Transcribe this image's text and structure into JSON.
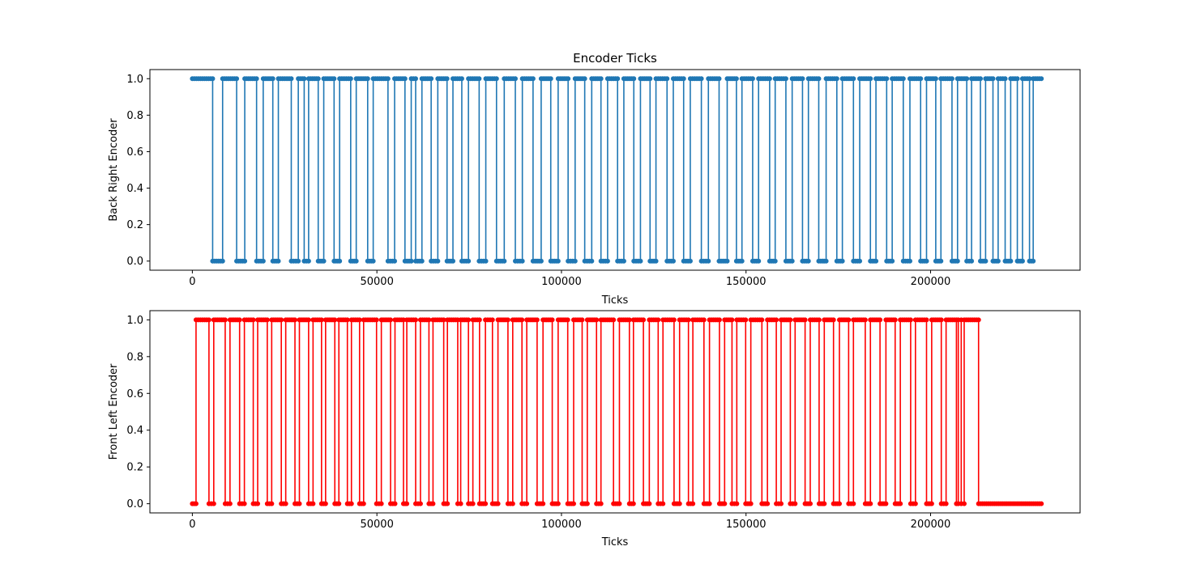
{
  "chart_data": [
    {
      "type": "line",
      "title": "Encoder Ticks",
      "xlabel": "Ticks",
      "ylabel": "Back Right Encoder",
      "xlim": [
        -11500,
        240500
      ],
      "ylim": [
        -0.05,
        1.05
      ],
      "xticks": [
        0,
        50000,
        100000,
        150000,
        200000
      ],
      "xtick_labels": [
        "0",
        "50000",
        "100000",
        "150000",
        "200000"
      ],
      "yticks": [
        0.0,
        0.2,
        0.4,
        0.6,
        0.8,
        1.0
      ],
      "ytick_labels": [
        "0.0",
        "0.2",
        "0.4",
        "0.6",
        "0.8",
        "1.0"
      ],
      "grid": false,
      "series": [
        {
          "color": "#1f77b4",
          "marker": "circle",
          "x_start": 0,
          "x_end": 230000,
          "initial_value": 1,
          "final_value": 1,
          "transitions": [
            5500,
            8200,
            12000,
            14200,
            17400,
            19200,
            21800,
            23300,
            26800,
            28700,
            30300,
            31500,
            34100,
            35600,
            38400,
            39900,
            42900,
            44400,
            47500,
            49000,
            53000,
            54800,
            57600,
            59300,
            60500,
            62200,
            64700,
            66500,
            69000,
            70600,
            73000,
            74800,
            77700,
            79500,
            82400,
            84500,
            87500,
            89400,
            92300,
            94500,
            97100,
            99100,
            101800,
            103700,
            106300,
            108200,
            110700,
            112500,
            115200,
            116900,
            119600,
            121400,
            124000,
            125600,
            128600,
            130300,
            133100,
            134900,
            137900,
            139800,
            142700,
            144900,
            147400,
            148900,
            151800,
            153400,
            156400,
            157900,
            160800,
            162500,
            165300,
            166900,
            169700,
            171700,
            174600,
            176100,
            179100,
            180800,
            183700,
            185200,
            188100,
            189600,
            192600,
            194400,
            197300,
            198900,
            201400,
            202800,
            205800,
            207300,
            209800,
            211100,
            213500,
            214900,
            216900,
            218300,
            220200,
            221700,
            223500,
            224900,
            226800,
            227800
          ]
        }
      ]
    },
    {
      "type": "line",
      "title": "",
      "xlabel": "Ticks",
      "ylabel": "Front Left Encoder",
      "xlim": [
        -11500,
        240500
      ],
      "ylim": [
        -0.05,
        1.05
      ],
      "xticks": [
        0,
        50000,
        100000,
        150000,
        200000
      ],
      "xtick_labels": [
        "0",
        "50000",
        "100000",
        "150000",
        "200000"
      ],
      "yticks": [
        0.0,
        0.2,
        0.4,
        0.6,
        0.8,
        1.0
      ],
      "ytick_labels": [
        "0.0",
        "0.2",
        "0.4",
        "0.6",
        "0.8",
        "1.0"
      ],
      "grid": false,
      "series": [
        {
          "color": "#ff0000",
          "marker": "circle",
          "x_start": 0,
          "x_end": 230000,
          "initial_value": 0,
          "final_value": 0,
          "transitions": [
            1000,
            4500,
            5800,
            8900,
            10200,
            12800,
            14100,
            16500,
            17700,
            20300,
            21500,
            24100,
            25300,
            27800,
            29000,
            31500,
            32700,
            35000,
            36100,
            38600,
            39700,
            42000,
            43100,
            45300,
            46400,
            49900,
            51200,
            53700,
            54900,
            57200,
            58100,
            60500,
            61800,
            64100,
            65200,
            68100,
            69100,
            71900,
            72700,
            74800,
            76000,
            77800,
            79400,
            81300,
            82800,
            85500,
            86800,
            89300,
            90600,
            93400,
            95000,
            97500,
            99100,
            101700,
            103300,
            105600,
            107000,
            109500,
            110700,
            114100,
            115700,
            118400,
            119500,
            122200,
            123800,
            126200,
            127500,
            130500,
            132000,
            134400,
            135600,
            138600,
            140100,
            142800,
            144200,
            146200,
            147500,
            149900,
            151300,
            154300,
            155800,
            158200,
            159500,
            162000,
            163300,
            166000,
            167400,
            169800,
            171200,
            173700,
            175300,
            177800,
            179100,
            182300,
            183700,
            186300,
            187900,
            190400,
            191800,
            194600,
            195900,
            198900,
            200300,
            202900,
            204200,
            207000,
            207500,
            208300,
            209100,
            213000
          ]
        }
      ]
    }
  ]
}
